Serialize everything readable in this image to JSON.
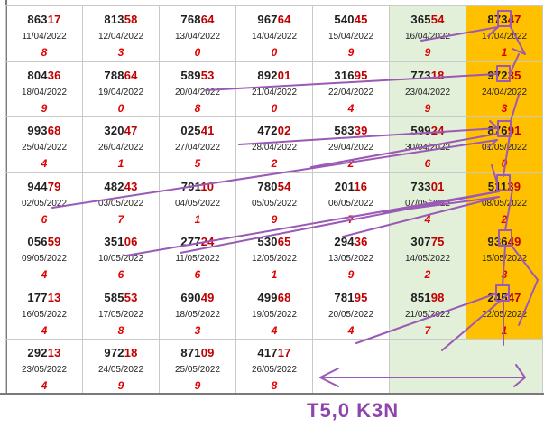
{
  "grid": {
    "rows": [
      [
        {
          "prefix": "863",
          "suffix": "17",
          "date": "11/04/2022",
          "digit": "8",
          "bg": ""
        },
        {
          "prefix": "813",
          "suffix": "58",
          "date": "12/04/2022",
          "digit": "3",
          "bg": ""
        },
        {
          "prefix": "768",
          "suffix": "64",
          "date": "13/04/2022",
          "digit": "0",
          "bg": ""
        },
        {
          "prefix": "967",
          "suffix": "64",
          "date": "14/04/2022",
          "digit": "0",
          "bg": ""
        },
        {
          "prefix": "540",
          "suffix": "45",
          "date": "15/04/2022",
          "digit": "9",
          "bg": ""
        },
        {
          "prefix": "365",
          "suffix": "54",
          "date": "16/04/2022",
          "digit": "9",
          "bg": "green"
        },
        {
          "prefix": "873",
          "suffix": "47",
          "date": "17/04/2022",
          "digit": "1",
          "bg": "orange"
        }
      ],
      [
        {
          "prefix": "804",
          "suffix": "36",
          "date": "18/04/2022",
          "digit": "9",
          "bg": ""
        },
        {
          "prefix": "788",
          "suffix": "64",
          "date": "19/04/2022",
          "digit": "0",
          "bg": ""
        },
        {
          "prefix": "589",
          "suffix": "53",
          "date": "20/04/2022",
          "digit": "8",
          "bg": ""
        },
        {
          "prefix": "892",
          "suffix": "01",
          "date": "21/04/2022",
          "digit": "0",
          "bg": ""
        },
        {
          "prefix": "316",
          "suffix": "95",
          "date": "22/04/2022",
          "digit": "4",
          "bg": ""
        },
        {
          "prefix": "773",
          "suffix": "18",
          "date": "23/04/2022",
          "digit": "9",
          "bg": "green"
        },
        {
          "prefix": "972",
          "suffix": "35",
          "date": "24/04/2022",
          "digit": "3",
          "bg": "orange"
        }
      ],
      [
        {
          "prefix": "993",
          "suffix": "68",
          "date": "25/04/2022",
          "digit": "4",
          "bg": ""
        },
        {
          "prefix": "320",
          "suffix": "47",
          "date": "26/04/2022",
          "digit": "1",
          "bg": ""
        },
        {
          "prefix": "025",
          "suffix": "41",
          "date": "27/04/2022",
          "digit": "5",
          "bg": ""
        },
        {
          "prefix": "472",
          "suffix": "02",
          "date": "28/04/2022",
          "digit": "2",
          "bg": ""
        },
        {
          "prefix": "583",
          "suffix": "39",
          "date": "29/04/2022",
          "digit": "2",
          "bg": ""
        },
        {
          "prefix": "599",
          "suffix": "24",
          "date": "30/04/2022",
          "digit": "6",
          "bg": "green"
        },
        {
          "prefix": "876",
          "suffix": "91",
          "date": "01/05/2022",
          "digit": "0",
          "bg": "orange"
        }
      ],
      [
        {
          "prefix": "944",
          "suffix": "79",
          "date": "02/05/2022",
          "digit": "6",
          "bg": ""
        },
        {
          "prefix": "482",
          "suffix": "43",
          "date": "03/05/2022",
          "digit": "7",
          "bg": ""
        },
        {
          "prefix": "791",
          "suffix": "10",
          "date": "04/05/2022",
          "digit": "1",
          "bg": ""
        },
        {
          "prefix": "780",
          "suffix": "54",
          "date": "05/05/2022",
          "digit": "9",
          "bg": ""
        },
        {
          "prefix": "201",
          "suffix": "16",
          "date": "06/05/2022",
          "digit": "7",
          "bg": ""
        },
        {
          "prefix": "733",
          "suffix": "01",
          "date": "07/05/2022",
          "digit": "4",
          "bg": "green"
        },
        {
          "prefix": "511",
          "suffix": "39",
          "date": "08/05/2022",
          "digit": "2",
          "bg": "orange"
        }
      ],
      [
        {
          "prefix": "056",
          "suffix": "59",
          "date": "09/05/2022",
          "digit": "4",
          "bg": ""
        },
        {
          "prefix": "351",
          "suffix": "06",
          "date": "10/05/2022",
          "digit": "6",
          "bg": ""
        },
        {
          "prefix": "277",
          "suffix": "24",
          "date": "11/05/2022",
          "digit": "6",
          "bg": ""
        },
        {
          "prefix": "530",
          "suffix": "65",
          "date": "12/05/2022",
          "digit": "1",
          "bg": ""
        },
        {
          "prefix": "294",
          "suffix": "36",
          "date": "13/05/2022",
          "digit": "9",
          "bg": ""
        },
        {
          "prefix": "307",
          "suffix": "75",
          "date": "14/05/2022",
          "digit": "2",
          "bg": "green"
        },
        {
          "prefix": "936",
          "suffix": "49",
          "date": "15/05/2022",
          "digit": "3",
          "bg": "orange"
        }
      ],
      [
        {
          "prefix": "177",
          "suffix": "13",
          "date": "16/05/2022",
          "digit": "4",
          "bg": ""
        },
        {
          "prefix": "585",
          "suffix": "53",
          "date": "17/05/2022",
          "digit": "8",
          "bg": ""
        },
        {
          "prefix": "690",
          "suffix": "49",
          "date": "18/05/2022",
          "digit": "3",
          "bg": ""
        },
        {
          "prefix": "499",
          "suffix": "68",
          "date": "19/05/2022",
          "digit": "4",
          "bg": ""
        },
        {
          "prefix": "781",
          "suffix": "95",
          "date": "20/05/2022",
          "digit": "4",
          "bg": ""
        },
        {
          "prefix": "851",
          "suffix": "98",
          "date": "21/05/2022",
          "digit": "7",
          "bg": "green"
        },
        {
          "prefix": "245",
          "suffix": "47",
          "date": "22/05/2022",
          "digit": "1",
          "bg": "orange"
        }
      ],
      [
        {
          "prefix": "292",
          "suffix": "13",
          "date": "23/05/2022",
          "digit": "4",
          "bg": ""
        },
        {
          "prefix": "972",
          "suffix": "18",
          "date": "24/05/2022",
          "digit": "9",
          "bg": ""
        },
        {
          "prefix": "871",
          "suffix": "09",
          "date": "25/05/2022",
          "digit": "9",
          "bg": ""
        },
        {
          "prefix": "417",
          "suffix": "17",
          "date": "26/05/2022",
          "digit": "8",
          "bg": ""
        },
        {
          "prefix": "",
          "suffix": "",
          "date": "",
          "digit": "",
          "bg": ""
        },
        {
          "prefix": "",
          "suffix": "",
          "date": "",
          "digit": "",
          "bg": "green"
        },
        {
          "prefix": "",
          "suffix": "",
          "date": "",
          "digit": "",
          "bg": "green"
        }
      ]
    ]
  },
  "caption": "T5,0 K3N",
  "colors": {
    "annotation": "#9b59b6",
    "caption": "#8e44ad",
    "highlight_green": "#e2efd9",
    "highlight_orange": "#ffc000",
    "suffix_red": "#c00000",
    "digit_red": "#e00000"
  }
}
